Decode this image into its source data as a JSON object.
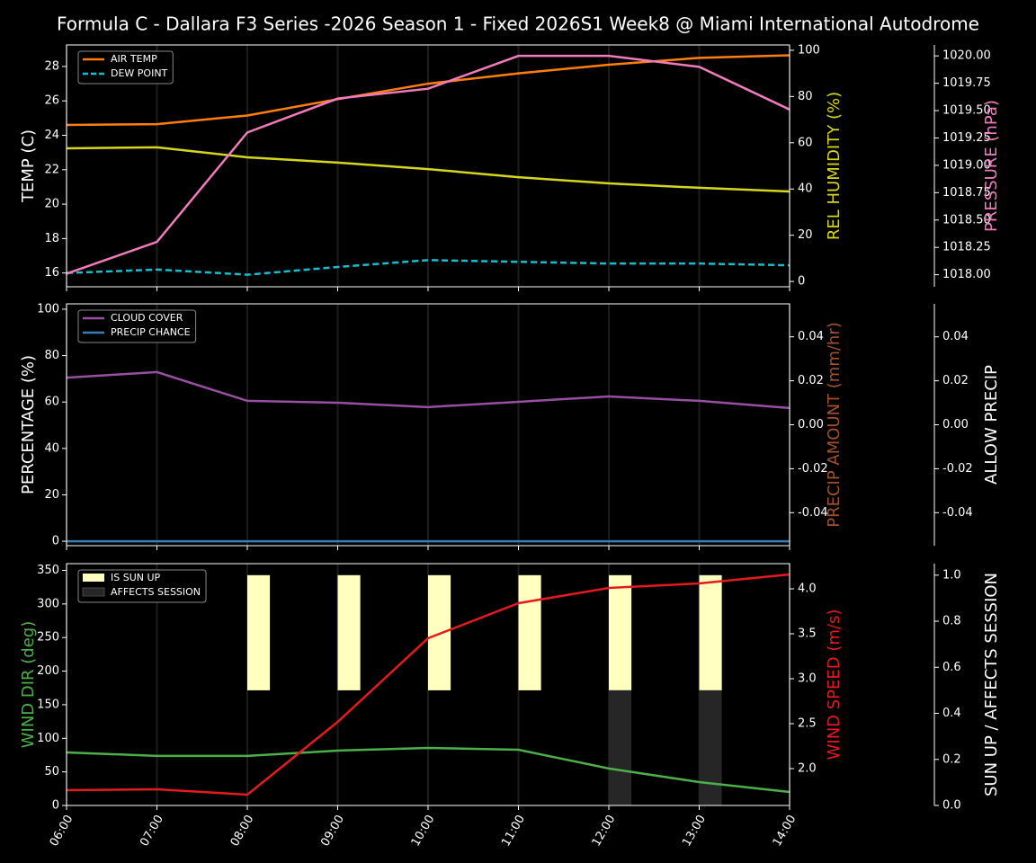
{
  "chart_data": [
    {
      "type": "line",
      "title": "Formula C - Dallara F3 Series -2026 Season 1 - Fixed 2026S1 Week8 @ Miami International Autodrome",
      "ylabel": "TEMP (C)",
      "ylabel_color": "#ffffff",
      "ylim": [
        15.2,
        29.25
      ],
      "yticks": [
        16,
        18,
        20,
        22,
        24,
        26,
        28
      ],
      "y2label": "REL HUMIDITY (%)",
      "y2label_color": "#d6d61e",
      "y2lim": [
        -2.3,
        102.3
      ],
      "y2ticks": [
        0,
        20,
        40,
        60,
        80,
        100
      ],
      "y3label": "PRESSURE (hPa)",
      "y3label_color": "#f07cbc",
      "y3lim": [
        1017.89,
        1020.1
      ],
      "y3ticks": [
        {
          "value": 1018,
          "label": "1018.00"
        },
        {
          "value": 1018.25,
          "label": "1018.25"
        },
        {
          "value": 1018.5,
          "label": "1018.50"
        },
        {
          "value": 1018.75,
          "label": "1018.75"
        },
        {
          "value": 1019,
          "label": "1019.00"
        },
        {
          "value": 1019.25,
          "label": "1019.25"
        },
        {
          "value": 1019.5,
          "label": "1019.50"
        },
        {
          "value": 1019.75,
          "label": "1019.75"
        },
        {
          "value": 1020,
          "label": "1020.00"
        }
      ],
      "xgrid": true,
      "legend": "upper left",
      "series": [
        {
          "name": "AIR TEMP",
          "color": "#ff7f0e",
          "values": [
            24.6,
            24.65,
            25.15,
            26.1,
            27.0,
            27.6,
            28.1,
            28.5,
            28.65
          ]
        },
        {
          "name": "DEW POINT",
          "color": "#17becf",
          "linestyle": "dashed",
          "values": [
            16.0,
            16.2,
            15.9,
            16.35,
            16.75,
            16.65,
            16.55,
            16.55,
            16.45
          ]
        },
        {
          "color": "#d6d61e",
          "axis": "y2",
          "values": [
            57.6,
            58.0,
            53.7,
            51.4,
            48.6,
            45.1,
            42.4,
            40.5,
            38.9
          ]
        },
        {
          "color": "#f07cbc",
          "axis": "y3",
          "values": [
            1018.01,
            1018.3,
            1019.3,
            1019.61,
            1019.7,
            1020.0,
            1020.0,
            1019.9,
            1019.51
          ]
        }
      ]
    },
    {
      "type": "line",
      "ylabel": "PERCENTAGE (%)",
      "ylabel_color": "#ffffff",
      "ylim": [
        -1.9,
        102.3
      ],
      "yticks": [
        0,
        20,
        40,
        60,
        80,
        100
      ],
      "y2label": "PRECIP AMOUNT (mm/hr)",
      "y2label_color": "#a0522d",
      "y2lim": [
        -0.055,
        0.055
      ],
      "y2ticks": [
        -0.04,
        -0.02,
        {
          "value": 0,
          "label": "0.00"
        },
        0.02,
        0.04
      ],
      "y3label": "ALLOW PRECIP",
      "y3label_color": "#ffffff",
      "y3lim": [
        -0.055,
        0.055
      ],
      "y3ticks": [
        -0.04,
        -0.02,
        {
          "value": 0,
          "label": "0.00"
        },
        0.02,
        0.04
      ],
      "xgrid": true,
      "legend": "upper left",
      "series": [
        {
          "name": "CLOUD COVER",
          "color": "#984ea3",
          "values": [
            70.5,
            72.9,
            60.5,
            59.7,
            57.8,
            60.1,
            62.4,
            60.5,
            57.4
          ]
        },
        {
          "name": "PRECIP CHANCE",
          "color": "#377eb8",
          "values": [
            0,
            0,
            0,
            0,
            0,
            0,
            0,
            0,
            0
          ]
        }
      ]
    },
    {
      "type": "line",
      "categories": [
        "06:00",
        "07:00",
        "08:00",
        "09:00",
        "10:00",
        "11:00",
        "12:00",
        "13:00",
        "14:00"
      ],
      "ylabel": "WIND DIR (deg)",
      "ylabel_color": "#4daf4a",
      "ylim": [
        0,
        360
      ],
      "yticks": [
        0,
        50,
        100,
        150,
        200,
        250,
        300,
        350
      ],
      "y2label": "WIND SPEED (m/s)",
      "y2label_color": "#e41a1c",
      "y2lim": [
        1.59,
        4.28
      ],
      "y2ticks": [
        {
          "value": 2,
          "label": "2.0"
        },
        2.5,
        {
          "value": 3,
          "label": "3.0"
        },
        3.5,
        {
          "value": 4,
          "label": "4.0"
        }
      ],
      "y3label": "SUN UP / AFFECTS SESSION",
      "y3label_color": "#ffffff",
      "y3lim": [
        0,
        1.05
      ],
      "y3ticks": [
        {
          "value": 0,
          "label": "0.0"
        },
        0.2,
        0.4,
        0.6,
        0.8,
        {
          "value": 1,
          "label": "1.0"
        }
      ],
      "xgrid": true,
      "legend": "upper left",
      "series": [
        {
          "name": "IS SUN UP",
          "type": "bar",
          "color": "#ffffc0",
          "axis": "y3",
          "bottom": 0.5,
          "values": [
            0,
            0,
            0.5,
            0.5,
            0.5,
            0.5,
            0.5,
            0.5,
            0
          ]
        },
        {
          "name": "AFFECTS SESSION",
          "type": "bar",
          "color": "#262626",
          "axis": "y3",
          "values": [
            0,
            0,
            0,
            0,
            0,
            0,
            0.5,
            0.5,
            0
          ]
        },
        {
          "color": "#4daf4a",
          "values": [
            79,
            73.7,
            73.7,
            81.7,
            85.7,
            83,
            55,
            34.8,
            20.1
          ]
        },
        {
          "color": "#e41a1c",
          "axis": "y2",
          "values": [
            1.76,
            1.77,
            1.71,
            2.52,
            3.45,
            3.84,
            4.01,
            4.06,
            4.16
          ]
        }
      ]
    }
  ]
}
